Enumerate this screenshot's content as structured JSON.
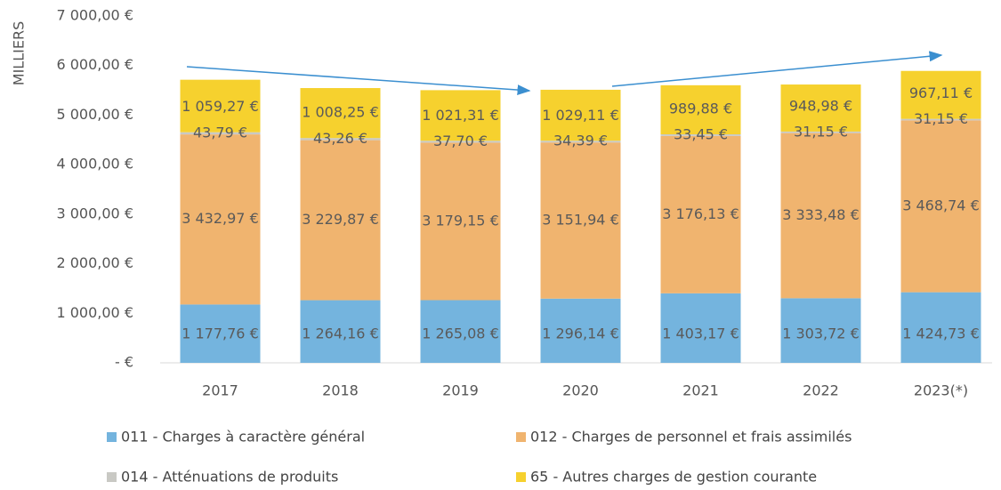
{
  "chart_data": {
    "type": "stacked_bar",
    "y_label": "MILLIERS",
    "categories": [
      "2017",
      "2018",
      "2019",
      "2020",
      "2021",
      "2022",
      "2023(*)"
    ],
    "series": [
      {
        "name": "011 - Charges à caractère général",
        "color": "#74b4de",
        "values": [
          1177.76,
          1264.16,
          1265.08,
          1296.14,
          1403.17,
          1303.72,
          1424.73
        ],
        "value_labels": [
          "1 177,76 €",
          "1 264,16 €",
          "1 265,08 €",
          "1 296,14 €",
          "1 403,17 €",
          "1 303,72 €",
          "1 424,73 €"
        ]
      },
      {
        "name": "012 - Charges de personnel et frais assimilés",
        "color": "#f0b46f",
        "values": [
          3432.97,
          3229.87,
          3179.15,
          3151.94,
          3176.13,
          3333.48,
          3468.74
        ],
        "value_labels": [
          "3 432,97 €",
          "3 229,87 €",
          "3 179,15 €",
          "3 151,94 €",
          "3 176,13 €",
          "3 333,48 €",
          "3 468,74 €"
        ]
      },
      {
        "name": "014 - Atténuations de produits",
        "color": "#c9c9c4",
        "values": [
          43.79,
          43.26,
          37.7,
          34.39,
          33.45,
          31.15,
          31.15
        ],
        "value_labels": [
          "43,79 €",
          "43,26 €",
          "37,70 €",
          "34,39 €",
          "33,45 €",
          "31,15 €",
          "31,15 €"
        ]
      },
      {
        "name": "65 - Autres charges de gestion courante",
        "color": "#f6d12e",
        "values": [
          1059.27,
          1008.25,
          1021.31,
          1029.11,
          989.88,
          948.98,
          967.11
        ],
        "value_labels": [
          "1 059,27 €",
          "1 008,25 €",
          "1 021,31 €",
          "1 029,11 €",
          "989,88 €",
          "948,98 €",
          "967,11 €"
        ]
      }
    ],
    "ylim": [
      0,
      7000
    ],
    "yticks": [
      {
        "value": 0,
        "label": "-   €"
      },
      {
        "value": 1000,
        "label": "1 000,00 €"
      },
      {
        "value": 2000,
        "label": "2 000,00 €"
      },
      {
        "value": 3000,
        "label": "3 000,00 €"
      },
      {
        "value": 4000,
        "label": "4 000,00 €"
      },
      {
        "value": 5000,
        "label": "5 000,00 €"
      },
      {
        "value": 6000,
        "label": "6 000,00 €"
      },
      {
        "value": 7000,
        "label": "7 000,00 €"
      }
    ],
    "grid": false
  }
}
